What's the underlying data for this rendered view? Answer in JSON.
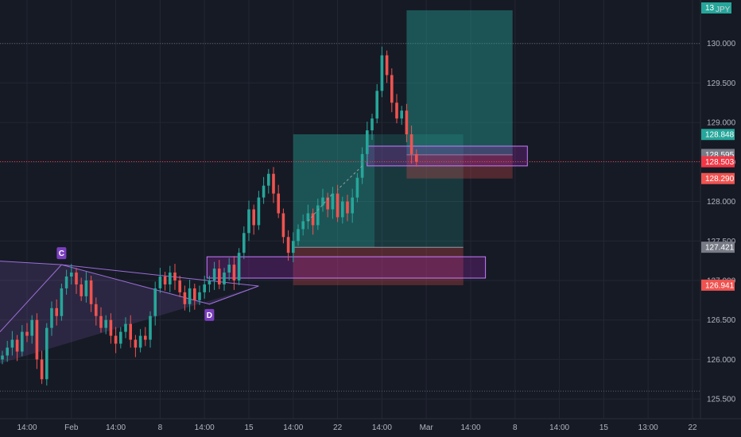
{
  "colors": {
    "background": "#161a25",
    "axis_bg": "#161a25",
    "grid": "#232733",
    "text": "#b2b5be",
    "up": "#26a69a",
    "down": "#ef5350",
    "pattern": "#9c6dd8",
    "zone_fill": "#9c27b0",
    "zone_stroke": "#c77dff",
    "profit": "#26a69a",
    "loss": "#ef5350",
    "last_price": "#f23645",
    "tag_gray": "#787b86"
  },
  "header_tag": {
    "text": "13",
    "unit": "JPY"
  },
  "chart_data": {
    "type": "candlestick",
    "title": "",
    "xlabel": "",
    "ylabel": "",
    "ylim": [
      125.25,
      130.55
    ],
    "grid": true,
    "y_ticks": [
      "125.500",
      "126.000",
      "126.500",
      "127.000",
      "127.500",
      "128.000",
      "128.500",
      "129.000",
      "129.500",
      "130.000"
    ],
    "x_ticks": [
      {
        "label": "14:00",
        "index": 5
      },
      {
        "label": "Feb",
        "index": 14
      },
      {
        "label": "14:00",
        "index": 23
      },
      {
        "label": "8",
        "index": 32
      },
      {
        "label": "14:00",
        "index": 41
      },
      {
        "label": "15",
        "index": 50
      },
      {
        "label": "14:00",
        "index": 59
      },
      {
        "label": "22",
        "index": 68
      },
      {
        "label": "14:00",
        "index": 77
      },
      {
        "label": "Mar",
        "index": 86
      },
      {
        "label": "14:00",
        "index": 95
      },
      {
        "label": "8",
        "index": 104
      },
      {
        "label": "14:00",
        "index": 113
      },
      {
        "label": "15",
        "index": 122
      },
      {
        "label": "13:00",
        "index": 131
      },
      {
        "label": "22",
        "index": 140
      }
    ],
    "price_tags": [
      {
        "value": 128.848,
        "label": "128.848",
        "color": "#26a69a"
      },
      {
        "value": 128.595,
        "label": "128.595",
        "color": "#787b86"
      },
      {
        "value": 128.503,
        "label": "128.503",
        "color": "#f23645"
      },
      {
        "value": 128.29,
        "label": "128.290",
        "color": "#ef5350"
      },
      {
        "value": 127.421,
        "label": "127.421",
        "color": "#787b86"
      },
      {
        "value": 126.941,
        "label": "126.941",
        "color": "#ef5350"
      }
    ],
    "last_price": 128.503,
    "dotted_levels": [
      130.0,
      125.6
    ],
    "closes": [
      126.05,
      126.15,
      126.25,
      126.1,
      126.35,
      126.3,
      126.5,
      126.0,
      125.75,
      126.4,
      126.65,
      126.55,
      126.9,
      127.05,
      127.1,
      126.95,
      126.8,
      127.0,
      126.7,
      126.55,
      126.4,
      126.5,
      126.3,
      126.2,
      126.35,
      126.45,
      126.25,
      126.15,
      126.3,
      126.25,
      126.55,
      126.9,
      127.05,
      126.95,
      127.1,
      127.0,
      126.85,
      126.7,
      126.9,
      126.75,
      126.85,
      126.95,
      127.0,
      127.15,
      126.95,
      127.1,
      127.2,
      127.0,
      127.35,
      127.6,
      127.9,
      127.7,
      128.05,
      128.2,
      128.35,
      128.1,
      127.85,
      127.55,
      127.35,
      127.5,
      127.65,
      127.75,
      127.85,
      127.7,
      127.95,
      128.05,
      127.9,
      128.1,
      127.8,
      128.0,
      127.85,
      128.05,
      128.3,
      128.6,
      128.9,
      129.05,
      129.4,
      129.85,
      129.6,
      129.25,
      129.05,
      129.15,
      128.85,
      128.6,
      128.5
    ],
    "candle_x_start": 3,
    "candle_x_step": 6.2,
    "pattern": {
      "name": "",
      "points": [
        {
          "label": "",
          "i": -2,
          "v": 127.25
        },
        {
          "label": "C",
          "i": 12,
          "v": 127.2
        },
        {
          "label": "D",
          "i": 42,
          "v": 126.7
        },
        {
          "label": "",
          "i": 52,
          "v": 126.93
        }
      ]
    },
    "zones": [
      {
        "i0": 41.5,
        "i1": 98,
        "v0": 127.3,
        "v1": 127.03
      },
      {
        "i0": 74,
        "i1": 106.5,
        "v0": 128.7,
        "v1": 128.45
      }
    ],
    "positions": [
      {
        "i0": 59,
        "i1": 93.5,
        "entry": 127.42,
        "target": 128.85,
        "stop": 126.94,
        "profit_end": 75.5
      },
      {
        "i0": 82,
        "i1": 103.5,
        "entry": 128.59,
        "target": 130.42,
        "stop": 128.29,
        "profit_end": 103.5
      }
    ]
  }
}
